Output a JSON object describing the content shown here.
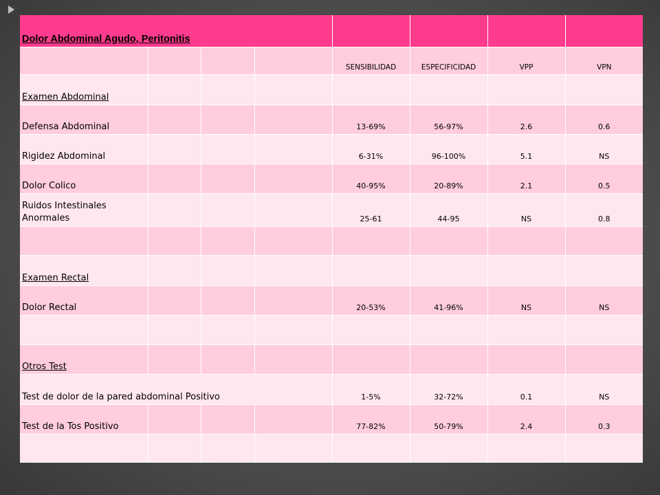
{
  "title": "Dolor Abdominal Agudo, Peritonitis",
  "columns": [
    "SENSIBILIDAD",
    "ESPECIFICIDAD",
    "VPP",
    "VPN"
  ],
  "rows": [
    {
      "label": "Examen Abdominal",
      "values": [
        "",
        "",
        "",
        ""
      ]
    },
    {
      "label": "Defensa Abdominal",
      "values": [
        "13-69%",
        "56-97%",
        "2.6",
        "0.6"
      ]
    },
    {
      "label": "Rigidez Abdominal",
      "values": [
        "6-31%",
        "96-100%",
        "5.1",
        "NS"
      ]
    },
    {
      "label": "Dolor Colico",
      "values": [
        "40-95%",
        "20-89%",
        "2.1",
        "0.5"
      ]
    },
    {
      "label": "Ruidos Intestinales Anormales",
      "values": [
        "25-61",
        "44-95",
        "NS",
        "0.8"
      ]
    },
    {
      "label": "",
      "values": [
        "",
        "",
        "",
        ""
      ]
    },
    {
      "label": "Examen Rectal",
      "values": [
        "",
        "",
        "",
        ""
      ]
    },
    {
      "label": "Dolor Rectal",
      "values": [
        "20-53%",
        "41-96%",
        "NS",
        "NS"
      ]
    },
    {
      "label": "",
      "values": [
        "",
        "",
        "",
        ""
      ]
    },
    {
      "label": "Otros Test",
      "values": [
        "",
        "",
        "",
        ""
      ]
    },
    {
      "label": "Test de dolor de la pared abdominal Positivo",
      "values": [
        "1-5%",
        "32-72%",
        "0.1",
        "NS"
      ]
    },
    {
      "label": "Test de la Tos Positivo",
      "values": [
        "77-82%",
        "50-79%",
        "2.4",
        "0.3"
      ]
    },
    {
      "label": "",
      "values": [
        "",
        "",
        "",
        ""
      ]
    }
  ],
  "colors": {
    "header": "#ff3b8d",
    "row_pink": "#ffcddd",
    "row_light": "#ffe7ee",
    "background": "#555555"
  }
}
